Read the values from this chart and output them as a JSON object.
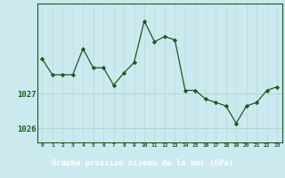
{
  "x": [
    0,
    1,
    2,
    3,
    4,
    5,
    6,
    7,
    8,
    9,
    10,
    11,
    12,
    13,
    14,
    15,
    16,
    17,
    18,
    19,
    20,
    21,
    22,
    23
  ],
  "y": [
    1028.0,
    1027.55,
    1027.55,
    1027.55,
    1028.3,
    1027.75,
    1027.75,
    1027.25,
    1027.6,
    1027.9,
    1029.1,
    1028.5,
    1028.65,
    1028.55,
    1027.1,
    1027.1,
    1026.85,
    1026.75,
    1026.65,
    1026.15,
    1026.65,
    1026.75,
    1027.1,
    1027.2
  ],
  "title": "Graphe pression niveau de la mer (hPa)",
  "bg_color": "#cce9f0",
  "header_bg": "#1a5c1a",
  "line_color": "#1a5c1a",
  "marker_color": "#1a5c1a",
  "grid_color_v": "#b8d8d0",
  "grid_color_h": "#aacccc",
  "title_color": "#ffffff",
  "ylabel_ticks": [
    1026,
    1027
  ],
  "xlim": [
    -0.5,
    23.5
  ],
  "ylim": [
    1025.6,
    1029.6
  ]
}
